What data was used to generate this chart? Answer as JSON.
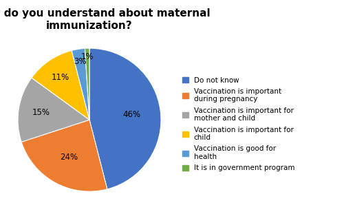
{
  "title": "What do you understand about maternal\nimmunization?",
  "legend_labels": [
    "Do not know",
    "Vaccination is important\nduring pregnancy",
    "Vaccination is important for\nmother and child",
    "Vaccination is important for\nchild",
    "Vaccination is good for\nhealth",
    "It is in government program"
  ],
  "values": [
    46,
    24,
    15,
    11,
    3,
    1
  ],
  "colors": [
    "#4472C4",
    "#ED7D31",
    "#A5A5A5",
    "#FFC000",
    "#5B9BD5",
    "#70AD47"
  ],
  "pct_labels": [
    "46%",
    "24%",
    "15%",
    "11%",
    "3%",
    "1%"
  ],
  "startangle": 90,
  "title_fontsize": 11,
  "label_fontsize": 8.5,
  "legend_fontsize": 7.5
}
